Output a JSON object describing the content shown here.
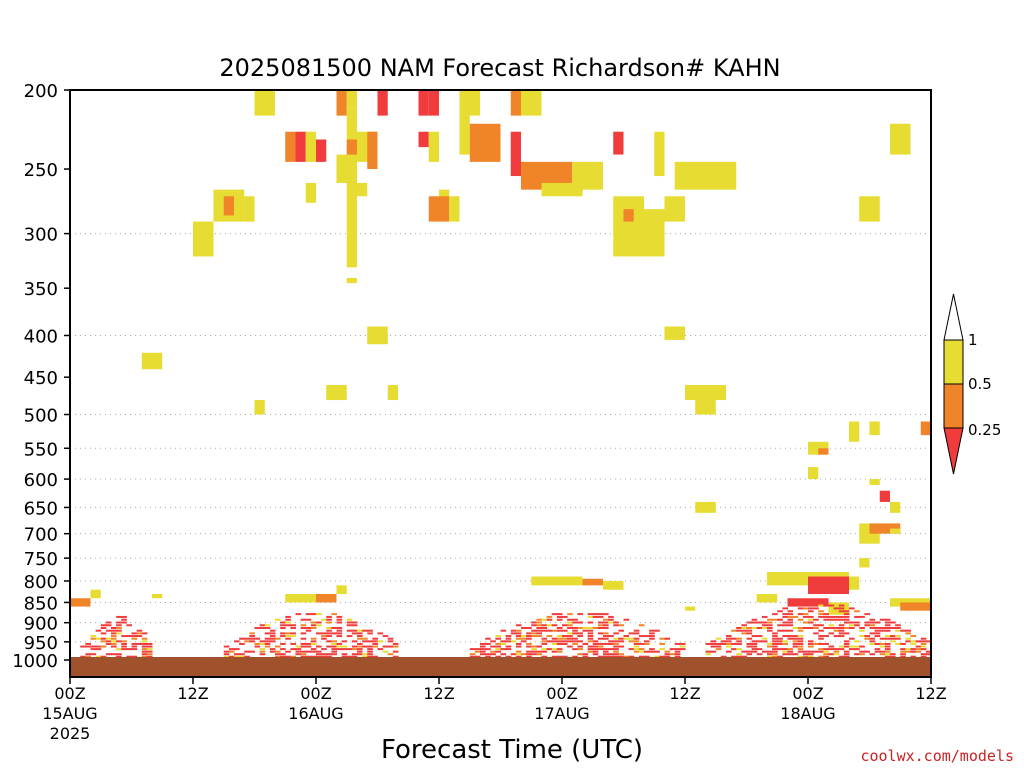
{
  "chart_data": {
    "type": "heatmap",
    "title": "2025081500 NAM Forecast Richardson# KAHN",
    "xlabel": "Forecast Time (UTC)",
    "ylabel": "",
    "watermark": "coolwx.com/models",
    "x_range_hours": [
      0,
      84
    ],
    "y_range_hpa": [
      1000,
      200
    ],
    "y_scale": "log-pressure",
    "grid": "dotted horizontal at pressure ticks",
    "legend": "colorbar right",
    "x_ticks": [
      {
        "hour": 0,
        "label": "00Z",
        "date": "15AUG",
        "year": "2025"
      },
      {
        "hour": 12,
        "label": "12Z",
        "date": "",
        "year": ""
      },
      {
        "hour": 24,
        "label": "00Z",
        "date": "16AUG",
        "year": ""
      },
      {
        "hour": 36,
        "label": "12Z",
        "date": "",
        "year": ""
      },
      {
        "hour": 48,
        "label": "00Z",
        "date": "17AUG",
        "year": ""
      },
      {
        "hour": 60,
        "label": "12Z",
        "date": "",
        "year": ""
      },
      {
        "hour": 72,
        "label": "00Z",
        "date": "18AUG",
        "year": ""
      },
      {
        "hour": 84,
        "label": "12Z",
        "date": "",
        "year": ""
      }
    ],
    "y_ticks": [
      200,
      250,
      300,
      350,
      400,
      450,
      500,
      550,
      600,
      650,
      700,
      750,
      800,
      850,
      900,
      950,
      1000
    ],
    "colorbar": {
      "levels": [
        "0.25",
        "0.5",
        "1"
      ],
      "colors": {
        "below_0.25": "#f03c3c",
        "0.25_0.5": "#ef8428",
        "0.5_1": "#e6dc32",
        "above_1": "#ffffff"
      }
    },
    "ground_color": "#a0522d",
    "class_colors": {
      "r": "#f03c3c",
      "o": "#ef8428",
      "y": "#e6dc32"
    },
    "cells": [
      [
        "y",
        18,
        20,
        200,
        215
      ],
      [
        "o",
        26,
        27,
        200,
        215
      ],
      [
        "y",
        27,
        28,
        200,
        210
      ],
      [
        "r",
        30,
        31,
        200,
        215
      ],
      [
        "r",
        34,
        35,
        200,
        215
      ],
      [
        "r",
        35,
        36,
        200,
        215
      ],
      [
        "y",
        38,
        40,
        200,
        215
      ],
      [
        "o",
        43,
        44,
        200,
        215
      ],
      [
        "y",
        44,
        46,
        200,
        215
      ],
      [
        "o",
        21,
        22,
        225,
        245
      ],
      [
        "r",
        22,
        23,
        225,
        245
      ],
      [
        "y",
        23,
        24,
        225,
        245
      ],
      [
        "r",
        24,
        25,
        230,
        245
      ],
      [
        "y",
        27,
        28,
        210,
        300
      ],
      [
        "o",
        27,
        28,
        230,
        260
      ],
      [
        "y",
        28,
        30,
        225,
        245
      ],
      [
        "o",
        29,
        30,
        225,
        250
      ],
      [
        "r",
        34,
        35,
        225,
        235
      ],
      [
        "y",
        35,
        36,
        225,
        245
      ],
      [
        "y",
        38,
        39,
        215,
        240
      ],
      [
        "o",
        39,
        42,
        220,
        245
      ],
      [
        "r",
        43,
        44,
        225,
        255
      ],
      [
        "o",
        44,
        49,
        245,
        265
      ],
      [
        "y",
        49,
        52,
        245,
        265
      ],
      [
        "r",
        53,
        54,
        225,
        240
      ],
      [
        "y",
        57,
        58,
        225,
        255
      ],
      [
        "y",
        59,
        65,
        245,
        265
      ],
      [
        "y",
        80,
        82,
        220,
        240
      ],
      [
        "y",
        26,
        28,
        240,
        260
      ],
      [
        "y",
        28,
        29,
        260,
        270
      ],
      [
        "y",
        14,
        17,
        265,
        290
      ],
      [
        "o",
        15,
        16,
        270,
        285
      ],
      [
        "y",
        17,
        18,
        270,
        290
      ],
      [
        "y",
        23,
        24,
        260,
        275
      ],
      [
        "y",
        36,
        37,
        265,
        275
      ],
      [
        "o",
        35,
        37,
        270,
        290
      ],
      [
        "y",
        37,
        38,
        270,
        290
      ],
      [
        "y",
        46,
        50,
        260,
        270
      ],
      [
        "y",
        53,
        56,
        270,
        320
      ],
      [
        "o",
        54,
        55,
        280,
        290
      ],
      [
        "y",
        56,
        58,
        280,
        320
      ],
      [
        "y",
        58,
        60,
        270,
        290
      ],
      [
        "y",
        77,
        79,
        270,
        290
      ],
      [
        "y",
        12,
        14,
        290,
        320
      ],
      [
        "y",
        27,
        28,
        300,
        330
      ],
      [
        "y",
        27,
        28,
        340,
        345
      ],
      [
        "y",
        29,
        31,
        390,
        410
      ],
      [
        "y",
        7,
        9,
        420,
        440
      ],
      [
        "y",
        58,
        60,
        390,
        405
      ],
      [
        "y",
        25,
        27,
        460,
        480
      ],
      [
        "y",
        31,
        32,
        460,
        480
      ],
      [
        "y",
        18,
        19,
        480,
        500
      ],
      [
        "y",
        60,
        64,
        460,
        480
      ],
      [
        "y",
        61,
        63,
        480,
        500
      ],
      [
        "y",
        72,
        74,
        540,
        560
      ],
      [
        "o",
        73,
        74,
        550,
        560
      ],
      [
        "y",
        76,
        77,
        510,
        540
      ],
      [
        "y",
        78,
        79,
        510,
        530
      ],
      [
        "o",
        83,
        84,
        510,
        530
      ],
      [
        "y",
        72,
        73,
        580,
        600
      ],
      [
        "y",
        61,
        63,
        640,
        660
      ],
      [
        "y",
        78,
        79,
        600,
        610
      ],
      [
        "r",
        79,
        80,
        620,
        640
      ],
      [
        "y",
        80,
        81,
        640,
        660
      ],
      [
        "y",
        77,
        79,
        680,
        720
      ],
      [
        "o",
        78,
        81,
        680,
        700
      ],
      [
        "y",
        80,
        81,
        690,
        700
      ],
      [
        "y",
        77,
        78,
        750,
        770
      ],
      [
        "y",
        45,
        50,
        790,
        810
      ],
      [
        "o",
        50,
        52,
        795,
        810
      ],
      [
        "y",
        52,
        54,
        800,
        820
      ],
      [
        "y",
        68,
        76,
        780,
        810
      ],
      [
        "r",
        72,
        76,
        790,
        830
      ],
      [
        "y",
        76,
        77,
        790,
        820
      ],
      [
        "y",
        2,
        3,
        820,
        840
      ],
      [
        "o",
        0,
        2,
        840,
        860
      ],
      [
        "y",
        8,
        9,
        830,
        840
      ],
      [
        "y",
        21,
        24,
        830,
        850
      ],
      [
        "o",
        24,
        26,
        830,
        850
      ],
      [
        "y",
        26,
        27,
        810,
        830
      ],
      [
        "y",
        80,
        84,
        840,
        860
      ],
      [
        "o",
        81,
        84,
        850,
        870
      ],
      [
        "y",
        67,
        69,
        830,
        850
      ],
      [
        "r",
        70,
        74,
        840,
        860
      ],
      [
        "y",
        74,
        76,
        850,
        880
      ],
      [
        "y",
        60,
        61,
        860,
        870
      ]
    ],
    "bands": [
      {
        "hours": [
          1,
          8
        ],
        "top_hpa": 880
      },
      {
        "hours": [
          15,
          32
        ],
        "top_hpa": 870
      },
      {
        "hours": [
          39,
          60
        ],
        "top_hpa": 870
      },
      {
        "hours": [
          62,
          84
        ],
        "top_hpa": 850
      }
    ]
  }
}
